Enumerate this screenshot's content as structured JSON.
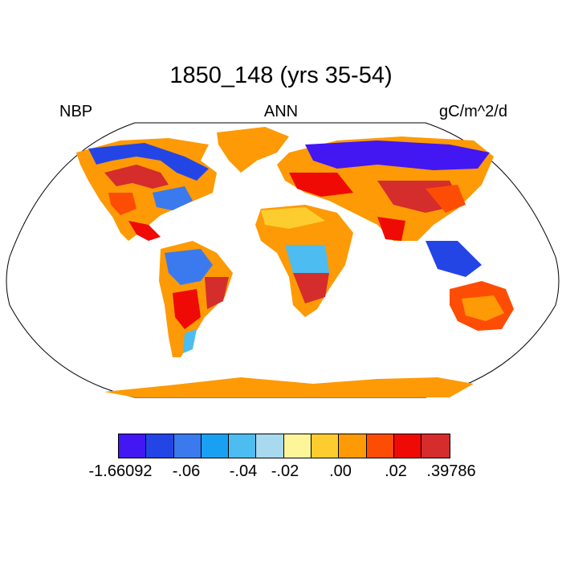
{
  "title": "1850_148 (yrs 35-54)",
  "left_label": "NBP",
  "center_label": "ANN",
  "right_label": "gC/m^2/d",
  "colorbar": {
    "colors": [
      "#4217f2",
      "#2445e6",
      "#3a7aee",
      "#1aa0f3",
      "#4dbcf0",
      "#a9d9ee",
      "#fdf59a",
      "#fdcd2f",
      "#fd9a05",
      "#fd4d05",
      "#ef0a05",
      "#d52c2c"
    ],
    "labels": [
      "-1.66092",
      "-.06",
      "-.04",
      "-.02",
      ".00",
      ".02",
      ".39786"
    ]
  },
  "map": {
    "projection": "Robinson",
    "ocean_color": "#ffffff",
    "antarctica_color": "#fd9a05",
    "greenland_color": "#fd9a05"
  }
}
